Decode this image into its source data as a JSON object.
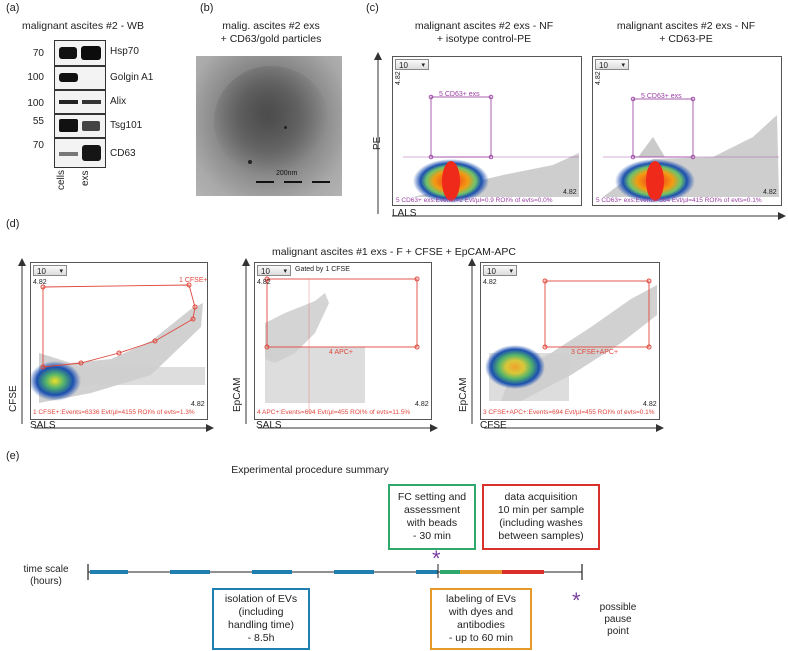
{
  "panel_labels": {
    "a": "(a)",
    "b": "(b)",
    "c": "(c)",
    "d": "(d)",
    "e": "(e)"
  },
  "panel_a": {
    "title": "malignant ascites #2 - WB",
    "bands": [
      {
        "mw": "70",
        "name": "Hsp70"
      },
      {
        "mw": "100",
        "name": "Golgin A1"
      },
      {
        "mw": "100",
        "name": "Alix"
      },
      {
        "mw": "55",
        "name": "Tsg101"
      },
      {
        "mw": "70",
        "name": "CD63"
      }
    ],
    "lanes": [
      "cells",
      "exs"
    ]
  },
  "panel_b": {
    "title_line1": "malig. ascites #2 exs",
    "title_line2": "+ CD63/gold particles",
    "scale": "200nm"
  },
  "panel_c": {
    "left": {
      "title_line1": "malignant ascites #2 exs - NF",
      "title_line2": "+ isotype control-PE",
      "dropdown": "10",
      "gate": "5 CD63+ exs",
      "max": "4.82",
      "footer": "5  CD63+ exs:Events=2   Evt/µl=0.9   ROI% of evts=0.0%"
    },
    "right": {
      "title_line1": "malignant ascites #2 exs - NF",
      "title_line2": "+ CD63-PE",
      "dropdown": "10",
      "gate": "5 CD63+ exs",
      "max": "4.82",
      "footer": "5  CD63+ exs:Events=664   Evt/µl=415   ROI% of evts=0.1%"
    },
    "y_axis": "PE",
    "x_axis": "LALS"
  },
  "panel_d": {
    "title": "malignant ascites #1 exs - F + CFSE + EpCAM-APC",
    "p1": {
      "dropdown": "10",
      "gate": "1 CFSE+",
      "max": "4.82",
      "footer": "1  CFSE+:Events=6336   Evt/µl=4155   ROI% of evts=1.3%",
      "y_axis": "CFSE",
      "x_axis": "SALS"
    },
    "p2": {
      "dropdown": "10",
      "gated_by": "Gated by 1 CFSE",
      "gate": "4 APC+",
      "max": "4.82",
      "footer": "4  APC+:Events=694   Evt/µl=455   ROI% of evts=11.5%",
      "y_axis": "EpCAM",
      "x_axis": "SALS"
    },
    "p3": {
      "dropdown": "10",
      "gate": "3 CFSE+APC+",
      "max": "4.82",
      "footer": "3  CFSE+APC+:Events=694   Evt/µl=455   ROI% of evts=0.1%",
      "y_axis": "EpCAM",
      "x_axis": "CFSE"
    }
  },
  "panel_e": {
    "title": "Experimental procedure summary",
    "fc_box": [
      "FC setting and",
      "assessment",
      "with beads",
      "- 30 min"
    ],
    "acq_box": [
      "data acquisition",
      "10 min per sample",
      "(including washes",
      "between samples)"
    ],
    "iso_box": [
      "isolation of EVs",
      "(including",
      "handling time)",
      "- 8.5h"
    ],
    "lab_box": [
      "labeling of EVs",
      "with dyes and",
      "antibodies",
      "- up to 60 min"
    ],
    "time_scale": [
      "time scale",
      "(hours)"
    ],
    "pause": [
      "possible",
      "pause",
      "point"
    ],
    "colors": {
      "iso": "#1f7fb0",
      "fc": "#2ea86c",
      "lab": "#e49b2a",
      "acq": "#d9302c",
      "pause": "#7b3fa0"
    }
  }
}
